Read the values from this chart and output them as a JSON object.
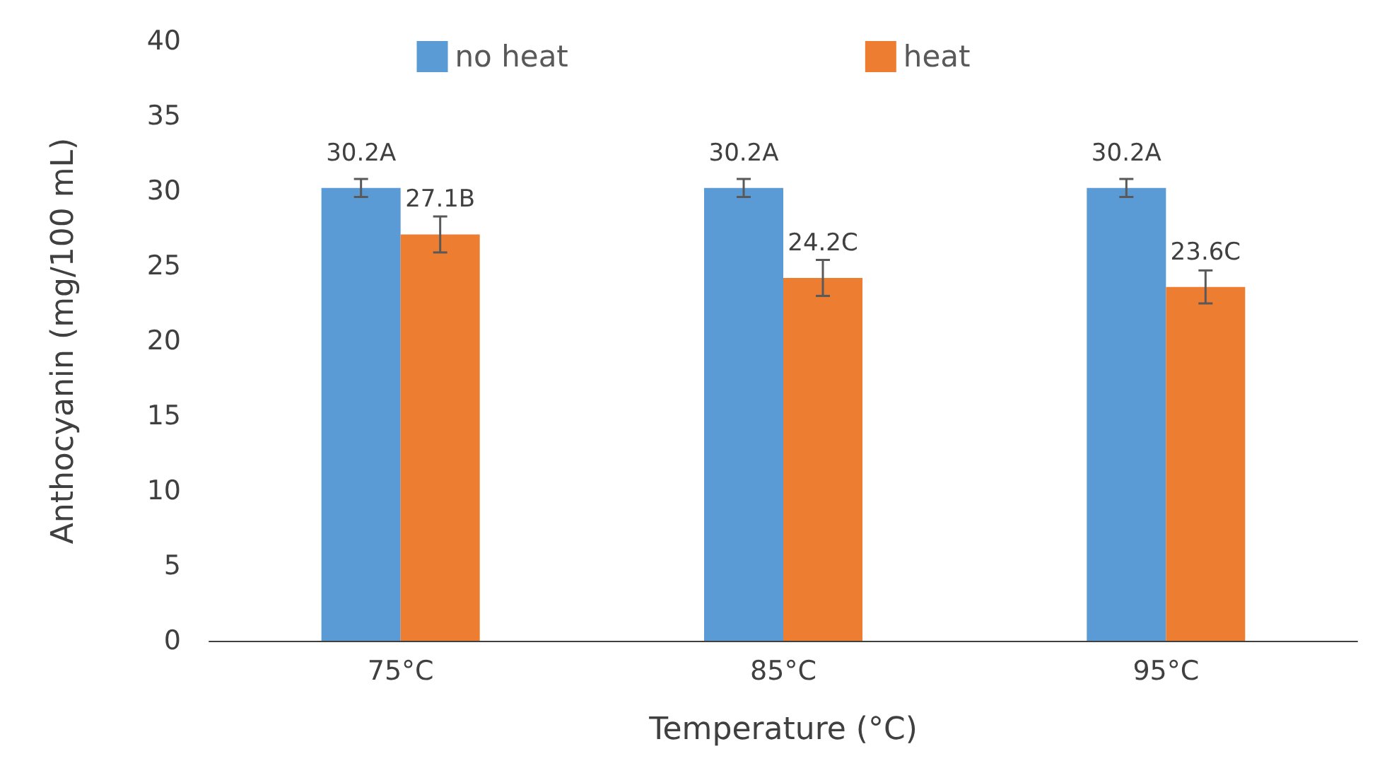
{
  "chart_data": {
    "type": "bar",
    "xlabel": "Temperature (°C)",
    "ylabel": "Anthocyanin (mg/100 mL)",
    "categories": [
      "75°C",
      "85°C",
      "95°C"
    ],
    "series": [
      {
        "name": "no heat",
        "color": "#5b9bd5",
        "values": [
          30.2,
          30.2,
          30.2
        ],
        "errors": [
          0.6,
          0.6,
          0.6
        ],
        "value_labels": [
          "30.2A",
          "30.2A",
          "30.2A"
        ]
      },
      {
        "name": "heat",
        "color": "#ed7d31",
        "values": [
          27.1,
          24.2,
          23.6
        ],
        "errors": [
          1.2,
          1.2,
          1.1
        ],
        "value_labels": [
          "27.1B",
          "24.2C",
          "23.6C"
        ]
      }
    ],
    "ylim": [
      0,
      40
    ],
    "yticks": [
      0,
      5,
      10,
      15,
      20,
      25,
      30,
      35,
      40
    ],
    "grid": false,
    "legend": "top"
  }
}
